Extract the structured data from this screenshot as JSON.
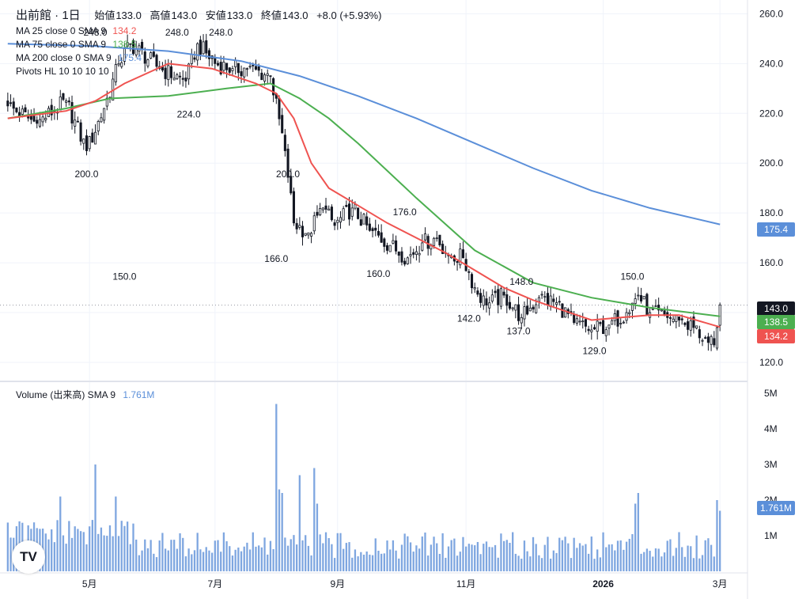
{
  "header": {
    "symbol": "出前館 · 1日",
    "open_label": "始値",
    "open": "133.0",
    "high_label": "高値",
    "high": "143.0",
    "low_label": "安値",
    "low": "133.0",
    "close_label": "終値",
    "close": "143.0",
    "change": "+8.0 (+5.93%)"
  },
  "indicators": [
    {
      "name": "MA 25 close 0 SMA 9",
      "value": "134.2",
      "color": "#ef5350"
    },
    {
      "name": "MA 75 close 0 SMA 9",
      "value": "138.5",
      "color": "#4caf50"
    },
    {
      "name": "MA 200 close 0 SMA 9",
      "value": "175.4",
      "color": "#5b8fd9"
    },
    {
      "name": "Pivots HL 10 10 10 10",
      "value": "",
      "color": "#131722"
    }
  ],
  "volume_legend": {
    "name": "Volume (出来高) SMA 9",
    "value": "1.761M",
    "color": "#5b8fd9"
  },
  "price_tags": [
    {
      "label": "175.4",
      "value": 175.4,
      "color": "#5b8fd9"
    },
    {
      "label": "143.0",
      "value": 143.0,
      "color": "#131722"
    },
    {
      "label": "138.5",
      "value": 138.5,
      "color": "#4caf50"
    },
    {
      "label": "134.2",
      "value": 134.2,
      "color": "#ef5350"
    }
  ],
  "volume_tag": {
    "label": "1.761M",
    "value": 1.761,
    "color": "#5b8fd9"
  },
  "logo_text": "TV",
  "colors": {
    "up": "#ffffff",
    "down": "#131722",
    "ma25": "#ef5350",
    "ma75": "#4caf50",
    "ma200": "#5b8fd9",
    "volume": "#7ea6e0",
    "grid": "#f0f3fa",
    "divider": "#e0e3eb"
  },
  "chart_data": {
    "type": "candlestick",
    "price_axis": {
      "ticks": [
        120.0,
        140.0,
        160.0,
        180.0,
        200.0,
        220.0,
        240.0,
        260.0
      ],
      "labels": [
        "120.0",
        "140.0",
        "160.0",
        "180.0",
        "200.0",
        "220.0",
        "240.0",
        "260.0"
      ],
      "range": [
        113,
        263
      ]
    },
    "volume_axis": {
      "ticks": [
        1,
        2,
        3,
        4,
        5
      ],
      "labels": [
        "1M",
        "2M",
        "3M",
        "4M",
        "5M"
      ],
      "range": [
        0,
        5.2
      ]
    },
    "x_axis": {
      "labels": [
        "5月",
        "7月",
        "9月",
        "11月",
        "2026",
        "3月"
      ],
      "label_index": [
        28,
        71,
        113,
        157,
        204,
        244
      ]
    },
    "n_bars": 245,
    "anchors": [
      {
        "i": 0,
        "c": 223
      },
      {
        "i": 10,
        "c": 216
      },
      {
        "i": 20,
        "c": 225
      },
      {
        "i": 27,
        "c": 205
      },
      {
        "i": 33,
        "c": 222
      },
      {
        "i": 38,
        "c": 240
      },
      {
        "i": 42,
        "c": 248
      },
      {
        "i": 52,
        "c": 238
      },
      {
        "i": 61,
        "c": 233
      },
      {
        "i": 65,
        "c": 248
      },
      {
        "i": 71,
        "c": 240
      },
      {
        "i": 77,
        "c": 238
      },
      {
        "i": 82,
        "c": 238
      },
      {
        "i": 90,
        "c": 235
      },
      {
        "i": 95,
        "c": 205
      },
      {
        "i": 98,
        "c": 176
      },
      {
        "i": 103,
        "c": 172
      },
      {
        "i": 108,
        "c": 182
      },
      {
        "i": 112,
        "c": 175
      },
      {
        "i": 118,
        "c": 182
      },
      {
        "i": 124,
        "c": 173
      },
      {
        "i": 131,
        "c": 167
      },
      {
        "i": 137,
        "c": 162
      },
      {
        "i": 142,
        "c": 168
      },
      {
        "i": 147,
        "c": 170
      },
      {
        "i": 151,
        "c": 163
      },
      {
        "i": 156,
        "c": 162
      },
      {
        "i": 160,
        "c": 150
      },
      {
        "i": 164,
        "c": 143
      },
      {
        "i": 170,
        "c": 147
      },
      {
        "i": 176,
        "c": 138
      },
      {
        "i": 182,
        "c": 146
      },
      {
        "i": 188,
        "c": 144
      },
      {
        "i": 194,
        "c": 136
      },
      {
        "i": 200,
        "c": 133
      },
      {
        "i": 206,
        "c": 135
      },
      {
        "i": 212,
        "c": 140
      },
      {
        "i": 216,
        "c": 147
      },
      {
        "i": 220,
        "c": 140
      },
      {
        "i": 226,
        "c": 138
      },
      {
        "i": 230,
        "c": 137
      },
      {
        "i": 235,
        "c": 134
      },
      {
        "i": 240,
        "c": 128
      },
      {
        "i": 242,
        "c": 127
      },
      {
        "i": 243,
        "c": 134
      },
      {
        "i": 244,
        "c": 143
      }
    ],
    "pivots": [
      {
        "label": "248.0",
        "i": 30,
        "value": 248.0,
        "pos": "high"
      },
      {
        "label": "248.0",
        "i": 58,
        "value": 248.0,
        "pos": "high"
      },
      {
        "label": "248.0",
        "i": 73,
        "value": 248.0,
        "pos": "high"
      },
      {
        "label": "150.0",
        "i": 40,
        "value": 150.0,
        "pos": "high"
      },
      {
        "label": "200.0",
        "i": 27,
        "value": 200.0,
        "pos": "low"
      },
      {
        "label": "224.0",
        "i": 62,
        "value": 224.0,
        "pos": "low"
      },
      {
        "label": "200.0",
        "i": 96,
        "value": 200.0,
        "pos": "low"
      },
      {
        "label": "166.0",
        "i": 92,
        "value": 166.0,
        "pos": "low"
      },
      {
        "label": "176.0",
        "i": 136,
        "value": 176.0,
        "pos": "high"
      },
      {
        "label": "160.0",
        "i": 127,
        "value": 160.0,
        "pos": "low"
      },
      {
        "label": "148.0",
        "i": 176,
        "value": 148.0,
        "pos": "high"
      },
      {
        "label": "150.0",
        "i": 214,
        "value": 150.0,
        "pos": "high"
      },
      {
        "label": "142.0",
        "i": 158,
        "value": 142.0,
        "pos": "low"
      },
      {
        "label": "137.0",
        "i": 175,
        "value": 137.0,
        "pos": "low"
      },
      {
        "label": "129.0",
        "i": 201,
        "value": 129.0,
        "pos": "low"
      }
    ],
    "ma200_points": [
      [
        0,
        248
      ],
      [
        30,
        247
      ],
      [
        55,
        245
      ],
      [
        80,
        241
      ],
      [
        100,
        235
      ],
      [
        120,
        227
      ],
      [
        140,
        218
      ],
      [
        160,
        208
      ],
      [
        180,
        198
      ],
      [
        200,
        189
      ],
      [
        220,
        182
      ],
      [
        244,
        175.4
      ]
    ],
    "ma75_points": [
      [
        0,
        218
      ],
      [
        20,
        222
      ],
      [
        35,
        226
      ],
      [
        55,
        227
      ],
      [
        75,
        230
      ],
      [
        90,
        232
      ],
      [
        100,
        226
      ],
      [
        110,
        218
      ],
      [
        120,
        208
      ],
      [
        140,
        186
      ],
      [
        160,
        165
      ],
      [
        180,
        152
      ],
      [
        200,
        146
      ],
      [
        220,
        142
      ],
      [
        244,
        138.5
      ]
    ],
    "ma25_points": [
      [
        0,
        218
      ],
      [
        20,
        221
      ],
      [
        30,
        225
      ],
      [
        40,
        232
      ],
      [
        55,
        240
      ],
      [
        70,
        238
      ],
      [
        85,
        232
      ],
      [
        92,
        228
      ],
      [
        98,
        218
      ],
      [
        104,
        200
      ],
      [
        110,
        190
      ],
      [
        120,
        183
      ],
      [
        130,
        176
      ],
      [
        140,
        170
      ],
      [
        150,
        164
      ],
      [
        160,
        157
      ],
      [
        170,
        150
      ],
      [
        180,
        145
      ],
      [
        190,
        141
      ],
      [
        200,
        137
      ],
      [
        210,
        138
      ],
      [
        220,
        139
      ],
      [
        230,
        139
      ],
      [
        244,
        134.2
      ]
    ],
    "volume_sma_last": 1.761,
    "volume_spikes": [
      {
        "i": 18,
        "v": 2.1
      },
      {
        "i": 30,
        "v": 3.0
      },
      {
        "i": 37,
        "v": 2.1
      },
      {
        "i": 92,
        "v": 4.7
      },
      {
        "i": 93,
        "v": 2.3
      },
      {
        "i": 94,
        "v": 2.2
      },
      {
        "i": 100,
        "v": 2.7
      },
      {
        "i": 105,
        "v": 2.9
      },
      {
        "i": 106,
        "v": 1.9
      },
      {
        "i": 216,
        "v": 2.2
      },
      {
        "i": 215,
        "v": 1.9
      },
      {
        "i": 243,
        "v": 2.0
      },
      {
        "i": 244,
        "v": 1.7
      }
    ]
  }
}
